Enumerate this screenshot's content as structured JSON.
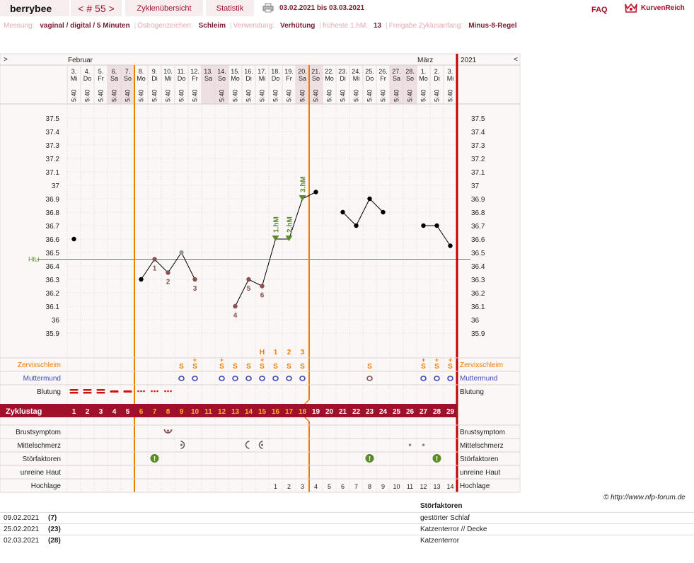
{
  "header": {
    "brand": "berrybee",
    "cycle_nav": "< # 55 >",
    "tab_cycles": "Zyklenübersicht",
    "tab_stats": "Statistik",
    "date_range": "03.02.2021 bis 03.03.2021",
    "faq": "FAQ",
    "logo_text": "KurvenReich"
  },
  "info": [
    {
      "label": "Messung:",
      "value": "vaginal / digital / 5 Minuten"
    },
    {
      "label": "Östrogenzeichen:",
      "value": "Schleim"
    },
    {
      "label": "Verwendung:",
      "value": "Verhütung"
    },
    {
      "label": "früheste 1.hM:",
      "value": "13"
    },
    {
      "label": "Freigabe Zyklusanfang:",
      "value": "Minus-8-Regel"
    }
  ],
  "chart_data": {
    "type": "line",
    "months": [
      {
        "label": "Februar",
        "day_index": 0
      },
      {
        "label": "März",
        "day_index": 26
      }
    ],
    "year": "2021",
    "nav_left": ">",
    "nav_right": "<",
    "dates": [
      "3.",
      "4.",
      "5.",
      "6.",
      "7.",
      "8.",
      "9.",
      "10.",
      "11.",
      "12.",
      "13.",
      "14.",
      "15.",
      "16.",
      "17.",
      "18.",
      "19.",
      "20.",
      "21.",
      "22.",
      "23.",
      "24.",
      "25.",
      "26.",
      "27.",
      "28.",
      "1.",
      "2.",
      "3."
    ],
    "weekdays": [
      "Mi",
      "Do",
      "Fr",
      "Sa",
      "So",
      "Mo",
      "Di",
      "Mi",
      "Do",
      "Fr",
      "Sa",
      "So",
      "Mo",
      "Di",
      "Mi",
      "Do",
      "Fr",
      "Sa",
      "So",
      "Mo",
      "Di",
      "Mi",
      "Do",
      "Fr",
      "Sa",
      "So",
      "Mo",
      "Di",
      "Mi"
    ],
    "times": [
      "5:40",
      "5:40",
      "5:40",
      "5:40",
      "5:40",
      "5:40",
      "5:40",
      "5:40",
      "5:40",
      "5:40",
      "",
      "5:40",
      "5:40",
      "5:40",
      "5:40",
      "5:40",
      "5:40",
      "5:40",
      "5:40",
      "5:40",
      "5:40",
      "5:40",
      "5:40",
      "5:40",
      "5:40",
      "5:40",
      "5:40",
      "5:40",
      "5:40"
    ],
    "weekend_cols": [
      3,
      4,
      10,
      11,
      17,
      18,
      24,
      25
    ],
    "temperatures": [
      36.6,
      null,
      null,
      null,
      null,
      36.3,
      36.45,
      36.35,
      36.5,
      36.3,
      null,
      null,
      36.1,
      36.3,
      36.25,
      36.6,
      36.6,
      36.9,
      36.95,
      null,
      36.8,
      36.7,
      36.9,
      36.8,
      null,
      null,
      36.7,
      36.7,
      36.55
    ],
    "yticks": [
      "37.5",
      "37.4",
      "37.3",
      "37.2",
      "37.1",
      "37",
      "36.9",
      "36.8",
      "36.7",
      "36.6",
      "36.5",
      "36.4",
      "36.3",
      "36.2",
      "36.1",
      "36",
      "35.9"
    ],
    "ylim": [
      35.9,
      37.5
    ],
    "hili_value": 36.45,
    "hili_label": "HiLi",
    "marked_points": [
      {
        "day_index": 6,
        "label": "1"
      },
      {
        "day_index": 7,
        "label": "2"
      },
      {
        "day_index": 9,
        "label": "3"
      },
      {
        "day_index": 12,
        "label": "4"
      },
      {
        "day_index": 13,
        "label": "5"
      },
      {
        "day_index": 14,
        "label": "6"
      }
    ],
    "gray_point_index": 8,
    "high_markers": [
      {
        "day_index": 15,
        "label": "1.hM"
      },
      {
        "day_index": 16,
        "label": "2.hM"
      },
      {
        "day_index": 17,
        "label": "3.hM"
      }
    ],
    "orange_lines_after_day": [
      4,
      17
    ],
    "rows": {
      "zervix_label": "Zervixschleim",
      "zervix_top": [
        "",
        "",
        "",
        "",
        "",
        "",
        "",
        "",
        "",
        "",
        "",
        "",
        "",
        "",
        "",
        "",
        "",
        "",
        "",
        "",
        "",
        "",
        "",
        "",
        "",
        "",
        "",
        "",
        ""
      ],
      "zervix": [
        "",
        "",
        "",
        "",
        "",
        "",
        "",
        "",
        "S",
        "S+",
        "",
        "S+",
        "S",
        "S",
        "S+",
        "S",
        "S",
        "S",
        "",
        "",
        "",
        "",
        "S",
        "",
        "",
        "",
        "S+",
        "S+",
        "S+"
      ],
      "zervix_labels_above": [
        {
          "day_index": 14,
          "label": "H"
        },
        {
          "day_index": 15,
          "label": "1"
        },
        {
          "day_index": 16,
          "label": "2"
        },
        {
          "day_index": 17,
          "label": "3"
        }
      ],
      "muttermund_label": "Muttermund",
      "muttermund": [
        "",
        "",
        "",
        "",
        "",
        "",
        "",
        "",
        "o",
        "o",
        "",
        "o",
        "o",
        "o",
        "o",
        "o",
        "o",
        "o",
        "",
        "",
        "",
        "",
        "o",
        "",
        "",
        "",
        "o",
        "o",
        "o"
      ],
      "blutung_label": "Blutung",
      "blutung": [
        3,
        3,
        3,
        2,
        2,
        1,
        1,
        1,
        0,
        0,
        0,
        0,
        0,
        0,
        0,
        0,
        0,
        0,
        0,
        0,
        0,
        0,
        0,
        0,
        0,
        0,
        0,
        0,
        0
      ],
      "zyklustag_label": "Zyklustag",
      "zyklustage": [
        "1",
        "2",
        "3",
        "4",
        "5",
        "6",
        "7",
        "8",
        "9",
        "10",
        "11",
        "12",
        "13",
        "14",
        "15",
        "16",
        "17",
        "18",
        "19",
        "20",
        "21",
        "22",
        "23",
        "24",
        "25",
        "26",
        "27",
        "28",
        "29"
      ],
      "brust_label": "Brustsymptom",
      "mittel_label": "Mittelschmerz",
      "stoer_label": "Störfaktoren",
      "stoer_days": [
        6,
        22,
        27
      ],
      "haut_label": "unreine Haut",
      "hochlage_label": "Hochlage",
      "hochlage": [
        "",
        "",
        "",
        "",
        "",
        "",
        "",
        "",
        "",
        "",
        "",
        "",
        "",
        "",
        "",
        "1",
        "2",
        "3",
        "4",
        "5",
        "6",
        "7",
        "8",
        "9",
        "10",
        "11",
        "12",
        "13",
        "14"
      ]
    }
  },
  "footer": {
    "copyright": "© http://www.nfp-forum.de",
    "disturb_title": "Störfaktoren",
    "disturbances": [
      {
        "date": "09.02.2021",
        "day": "(7)",
        "desc": "gestörter Schlaf"
      },
      {
        "date": "25.02.2021",
        "day": "(23)",
        "desc": "Katzenterror // Decke"
      },
      {
        "date": "02.03.2021",
        "day": "(28)",
        "desc": "Katzenterror"
      }
    ]
  },
  "colors": {
    "accent": "#a0102a",
    "orange": "#f07a00",
    "green": "#5a8a2a",
    "blue": "#3a4ab8"
  }
}
